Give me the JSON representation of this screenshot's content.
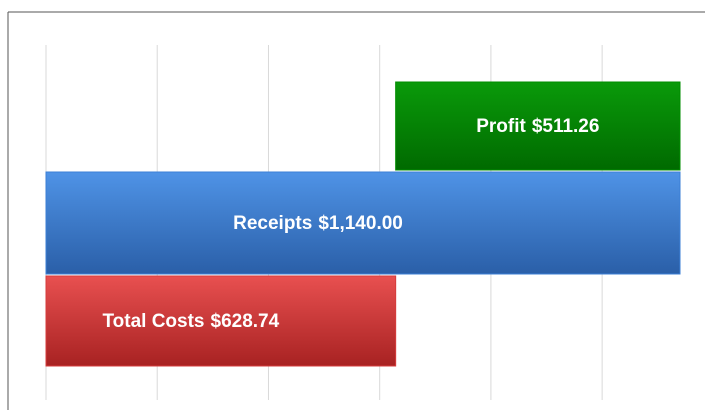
{
  "chart_data": {
    "type": "waterfall",
    "categories": [
      "Total Costs",
      "Receipts",
      "Profit"
    ],
    "values": [
      628.74,
      1140,
      511.26
    ],
    "value_labels": [
      "$628.74",
      "$1,140.00",
      "$511.26"
    ],
    "colors": [
      "#d63c3c",
      "#3b7fd6",
      "#008c00"
    ],
    "xlim": [
      0,
      1140
    ],
    "xticks": [
      0,
      200,
      400,
      600,
      800,
      1000
    ],
    "grid": true
  }
}
